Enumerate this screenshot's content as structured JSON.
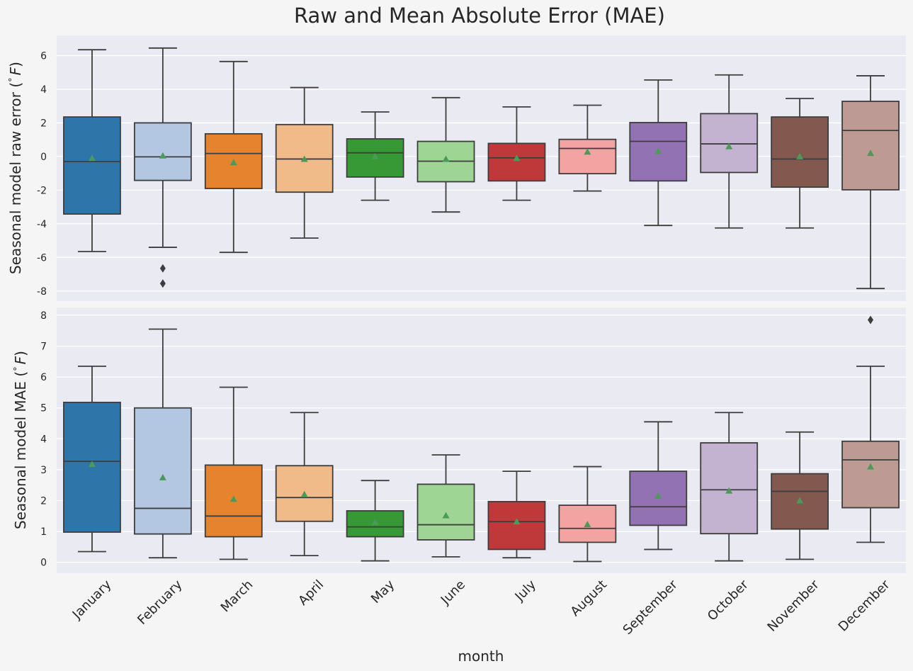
{
  "figure": {
    "title": "Raw and Mean Absolute Error (MAE)",
    "xlabel": "month"
  },
  "colors": {
    "background": "#f5f5f5",
    "panel": "#eaeaf2",
    "grid": "#ffffff",
    "line": "#3d3d3d",
    "mean_marker": "#4c9a5a"
  },
  "chart_data": [
    {
      "type": "box",
      "ylabel": "Seasonal model raw error ($^\\circ F$)",
      "ylabel_text": "Seasonal model raw error (",
      "ylabel_sym": "°",
      "ylabel_unit": "F",
      "ylabel_end": ")",
      "ylim": [
        -8.6,
        7.2
      ],
      "yticks": [
        -8,
        -6,
        -4,
        -2,
        0,
        2,
        4,
        6
      ],
      "categories": [
        "January",
        "February",
        "March",
        "April",
        "May",
        "June",
        "July",
        "August",
        "September",
        "October",
        "November",
        "December"
      ],
      "boxes": [
        {
          "whislo": -5.65,
          "q1": -3.42,
          "med": -0.3,
          "q3": 2.35,
          "whishi": 6.35,
          "mean": -0.1,
          "fliers": []
        },
        {
          "whislo": -5.4,
          "q1": -1.42,
          "med": -0.02,
          "q3": 2.0,
          "whishi": 6.45,
          "mean": 0.05,
          "fliers": [
            -6.65,
            -7.55
          ]
        },
        {
          "whislo": -5.7,
          "q1": -1.9,
          "med": 0.18,
          "q3": 1.35,
          "whishi": 5.65,
          "mean": -0.35,
          "fliers": []
        },
        {
          "whislo": -4.85,
          "q1": -2.12,
          "med": -0.15,
          "q3": 1.9,
          "whishi": 4.1,
          "mean": -0.15,
          "fliers": []
        },
        {
          "whislo": -2.6,
          "q1": -1.22,
          "med": 0.22,
          "q3": 1.05,
          "whishi": 2.65,
          "mean": 0.0,
          "fliers": []
        },
        {
          "whislo": -3.3,
          "q1": -1.5,
          "med": -0.28,
          "q3": 0.9,
          "whishi": 3.5,
          "mean": -0.15,
          "fliers": []
        },
        {
          "whislo": -2.6,
          "q1": -1.45,
          "med": -0.08,
          "q3": 0.78,
          "whishi": 2.95,
          "mean": -0.1,
          "fliers": []
        },
        {
          "whislo": -2.05,
          "q1": -1.02,
          "med": 0.48,
          "q3": 1.02,
          "whishi": 3.05,
          "mean": 0.28,
          "fliers": []
        },
        {
          "whislo": -4.1,
          "q1": -1.45,
          "med": 0.9,
          "q3": 2.02,
          "whishi": 4.55,
          "mean": 0.32,
          "fliers": []
        },
        {
          "whislo": -4.25,
          "q1": -0.95,
          "med": 0.75,
          "q3": 2.55,
          "whishi": 4.85,
          "mean": 0.6,
          "fliers": []
        },
        {
          "whislo": -4.25,
          "q1": -1.82,
          "med": -0.15,
          "q3": 2.35,
          "whishi": 3.45,
          "mean": 0.0,
          "fliers": []
        },
        {
          "whislo": -7.85,
          "q1": -1.98,
          "med": 1.55,
          "q3": 3.28,
          "whishi": 4.8,
          "mean": 0.2,
          "fliers": []
        }
      ]
    },
    {
      "type": "box",
      "ylabel": "Seasonal model MAE ($^\\circ F$)",
      "ylabel_text": "Seasonal model MAE (",
      "ylabel_sym": "°",
      "ylabel_unit": "F",
      "ylabel_end": ")",
      "ylim": [
        -0.35,
        8.25
      ],
      "yticks": [
        0,
        1,
        2,
        3,
        4,
        5,
        6,
        7,
        8
      ],
      "categories": [
        "January",
        "February",
        "March",
        "April",
        "May",
        "June",
        "July",
        "August",
        "September",
        "October",
        "November",
        "December"
      ],
      "boxes": [
        {
          "whislo": 0.35,
          "q1": 0.98,
          "med": 3.27,
          "q3": 5.18,
          "whishi": 6.35,
          "mean": 3.18,
          "fliers": []
        },
        {
          "whislo": 0.15,
          "q1": 0.92,
          "med": 1.75,
          "q3": 5.0,
          "whishi": 7.55,
          "mean": 2.75,
          "fliers": []
        },
        {
          "whislo": 0.1,
          "q1": 0.83,
          "med": 1.5,
          "q3": 3.15,
          "whishi": 5.67,
          "mean": 2.05,
          "fliers": []
        },
        {
          "whislo": 0.22,
          "q1": 1.33,
          "med": 2.1,
          "q3": 3.13,
          "whishi": 4.85,
          "mean": 2.2,
          "fliers": []
        },
        {
          "whislo": 0.05,
          "q1": 0.83,
          "med": 1.15,
          "q3": 1.67,
          "whishi": 2.65,
          "mean": 1.3,
          "fliers": []
        },
        {
          "whislo": 0.18,
          "q1": 0.73,
          "med": 1.22,
          "q3": 2.53,
          "whishi": 3.48,
          "mean": 1.52,
          "fliers": []
        },
        {
          "whislo": 0.15,
          "q1": 0.42,
          "med": 1.32,
          "q3": 1.97,
          "whishi": 2.95,
          "mean": 1.32,
          "fliers": []
        },
        {
          "whislo": 0.03,
          "q1": 0.65,
          "med": 1.1,
          "q3": 1.85,
          "whishi": 3.1,
          "mean": 1.23,
          "fliers": []
        },
        {
          "whislo": 0.42,
          "q1": 1.2,
          "med": 1.8,
          "q3": 2.95,
          "whishi": 4.55,
          "mean": 2.15,
          "fliers": []
        },
        {
          "whislo": 0.05,
          "q1": 0.93,
          "med": 2.35,
          "q3": 3.87,
          "whishi": 4.85,
          "mean": 2.32,
          "fliers": []
        },
        {
          "whislo": 0.1,
          "q1": 1.08,
          "med": 2.3,
          "q3": 2.87,
          "whishi": 4.22,
          "mean": 2.0,
          "fliers": []
        },
        {
          "whislo": 0.65,
          "q1": 1.77,
          "med": 3.32,
          "q3": 3.92,
          "whishi": 6.35,
          "mean": 3.1,
          "fliers": [
            7.85
          ]
        }
      ]
    }
  ],
  "series_colors": [
    "#2e75aa",
    "#b4c7e2",
    "#e5832f",
    "#f0bb88",
    "#369935",
    "#9ed594",
    "#c0393a",
    "#f2a3a2",
    "#9272b2",
    "#c3b3d1",
    "#83594f",
    "#bd9a94"
  ]
}
